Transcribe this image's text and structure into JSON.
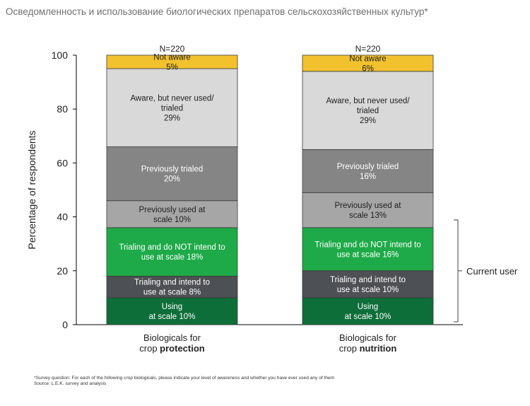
{
  "page": {
    "title": "Осведомленность и использование биологических препаратов сельскохозяйственных культур*",
    "footnote": "*Survey question: For each of the following crop biologicals, please indicate your level of awareness and whether you have ever used any of them",
    "source": "Source: L.E.K. survey and analysis"
  },
  "chart_data": {
    "type": "bar",
    "stacked": true,
    "ylabel": "Percentage of respondents",
    "ylim": [
      0,
      100
    ],
    "yticks": [
      0,
      20,
      40,
      60,
      80,
      100
    ],
    "grid": false,
    "categories": [
      {
        "line1": "Biologicals for",
        "line2_prefix": "crop ",
        "line2_bold": "protection",
        "n_label": "N=220"
      },
      {
        "line1": "Biologicals for",
        "line2_prefix": "crop ",
        "line2_bold": "nutrition",
        "n_label": "N=220"
      }
    ],
    "series": [
      {
        "key": "using",
        "color": "#0e6e3a",
        "text_color": "#ffffff",
        "labels": [
          [
            "Using",
            "at scale 10%"
          ],
          [
            "Using",
            "at scale 10%"
          ]
        ],
        "values": [
          10,
          10
        ]
      },
      {
        "key": "trialing-intend",
        "color": "#4d5054",
        "text_color": "#ffffff",
        "labels": [
          [
            "Trialing and intend to",
            "use at scale 8%"
          ],
          [
            "Trialing and intend to",
            "use at scale 10%"
          ]
        ],
        "values": [
          8,
          10
        ]
      },
      {
        "key": "trialing-not-intend",
        "color": "#1eaa48",
        "text_color": "#ffffff",
        "labels": [
          [
            "Trialing and do NOT intend to",
            "use at scale 18%"
          ],
          [
            "Trialing and do NOT intend to",
            "use at scale 16%"
          ]
        ],
        "values": [
          18,
          16
        ]
      },
      {
        "key": "previously-used",
        "color": "#a6a6a6",
        "text_color": "#222222",
        "labels": [
          [
            "Previously used at",
            "scale 10%"
          ],
          [
            "Previously used at",
            "scale 13%"
          ]
        ],
        "values": [
          10,
          13
        ]
      },
      {
        "key": "previously-trialed",
        "color": "#858585",
        "text_color": "#ffffff",
        "labels": [
          [
            "Previously trialed",
            "20%"
          ],
          [
            "Previously trialed",
            "16%"
          ]
        ],
        "values": [
          20,
          16
        ]
      },
      {
        "key": "aware-never-used",
        "color": "#d9d9d9",
        "text_color": "#222222",
        "labels": [
          [
            "Aware, but never used/",
            "trialed",
            "29%"
          ],
          [
            "Aware, but never used/",
            "trialed",
            "29%"
          ]
        ],
        "values": [
          29,
          29
        ]
      },
      {
        "key": "not-aware",
        "color": "#f2c12e",
        "text_color": "#222222",
        "labels": [
          [
            "Not aware",
            "5%"
          ],
          [
            "Not aware",
            "6%"
          ]
        ],
        "values": [
          5,
          6
        ]
      }
    ],
    "annotation": {
      "text": "Current user",
      "from": 0,
      "to": 36
    }
  }
}
